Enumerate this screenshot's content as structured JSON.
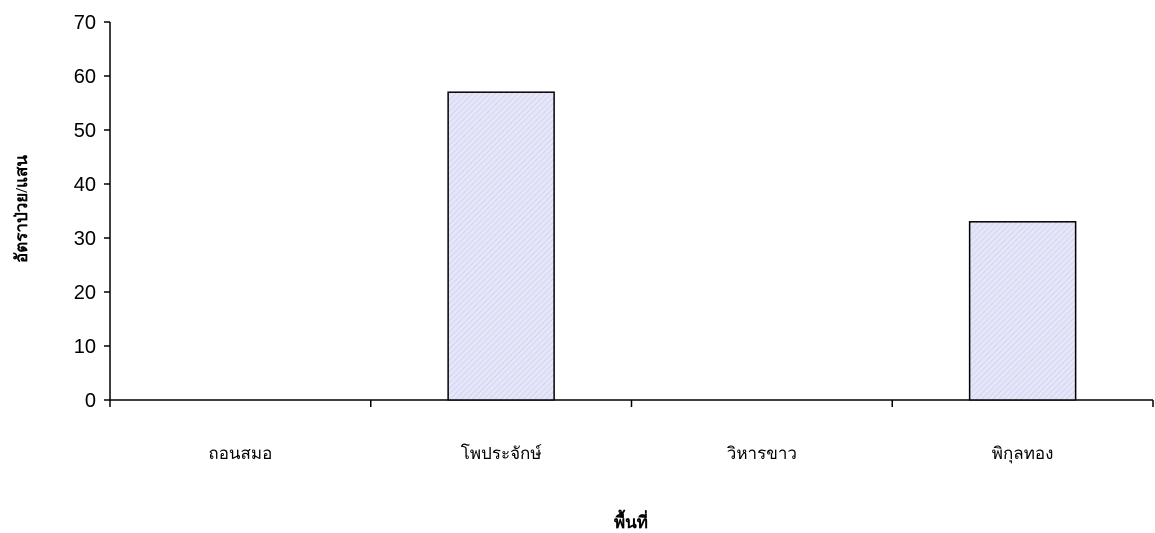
{
  "chart_data": {
    "type": "bar",
    "categories": [
      "ถอนสมอ",
      "โพประจักษ์",
      "วิหารขาว",
      "พิกุลทอง"
    ],
    "values": [
      0,
      57,
      0,
      33
    ],
    "xlabel": "พื้นที่",
    "ylabel": "อัตราป่วย/แสน",
    "ylim": [
      0,
      70
    ],
    "yticks": [
      0,
      10,
      20,
      30,
      40,
      50,
      60,
      70
    ],
    "grid": false,
    "legend": "none",
    "bar_fill": "#e6e6fa",
    "bar_hatch_color": "#c9c9e8",
    "bar_stroke": "#000000",
    "axis_color": "#000000"
  }
}
